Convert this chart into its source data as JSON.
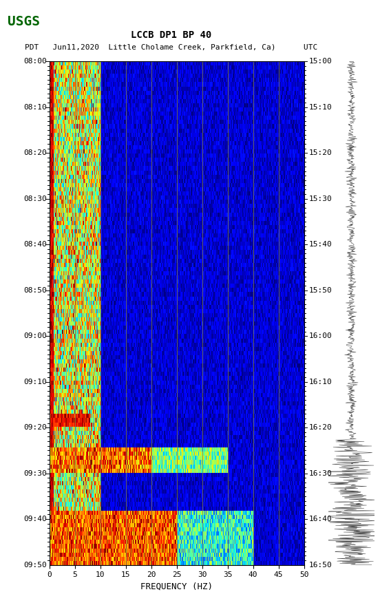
{
  "title_line1": "LCCB DP1 BP 40",
  "title_line2": "PDT   Jun11,2020  Little Cholame Creek, Parkfield, Ca)      UTC",
  "xlabel": "FREQUENCY (HZ)",
  "freq_min": 0,
  "freq_max": 50,
  "freq_ticks": [
    0,
    5,
    10,
    15,
    20,
    25,
    30,
    35,
    40,
    45,
    50
  ],
  "time_start_label": "08:00",
  "time_end_label": "09:50",
  "right_time_start": "15:00",
  "right_time_end": "16:50",
  "time_labels_left": [
    "08:00",
    "08:10",
    "08:20",
    "08:30",
    "08:40",
    "08:50",
    "09:00",
    "09:10",
    "09:20",
    "09:30",
    "09:40",
    "09:50"
  ],
  "time_labels_right": [
    "15:00",
    "15:10",
    "15:20",
    "15:30",
    "15:40",
    "15:50",
    "16:00",
    "16:10",
    "16:20",
    "16:30",
    "16:40",
    "16:50"
  ],
  "n_time_bins": 120,
  "n_freq_bins": 500,
  "bg_color": "white",
  "spectrogram_cmap": "jet",
  "vline_color": "#808040",
  "vline_positions": [
    5,
    10,
    15,
    20,
    25,
    30,
    35,
    40,
    45
  ],
  "figsize": [
    5.52,
    8.92
  ],
  "dpi": 100,
  "usgs_logo_color": "#006400"
}
